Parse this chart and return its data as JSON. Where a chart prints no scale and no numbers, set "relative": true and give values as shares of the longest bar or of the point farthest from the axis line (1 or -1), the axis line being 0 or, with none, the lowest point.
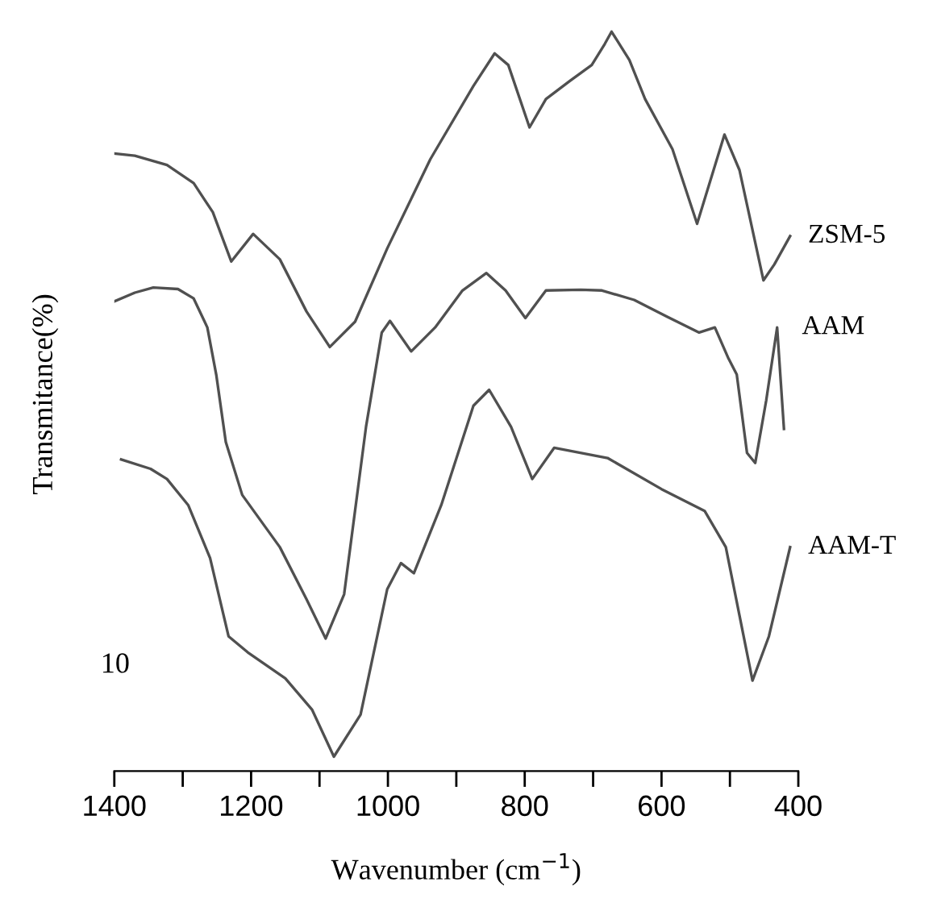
{
  "chart_data": {
    "type": "line",
    "relative": true,
    "xlabel": "Wavenumber (cm$^{−1}$)",
    "ylabel": "Transmitance(%)",
    "xlim": [
      1400,
      400
    ],
    "xticks": [
      {
        "value": 1400,
        "label": "1400"
      },
      {
        "value": 1300,
        "label": null
      },
      {
        "value": 1200,
        "label": "1200"
      },
      {
        "value": 1100,
        "label": null
      },
      {
        "value": 1000,
        "label": "1000"
      },
      {
        "value": 900,
        "label": null
      },
      {
        "value": 800,
        "label": "800"
      },
      {
        "value": 700,
        "label": null
      },
      {
        "value": 600,
        "label": "600"
      },
      {
        "value": 500,
        "label": null
      },
      {
        "value": 400,
        "label": "400"
      }
    ],
    "tick_labels": "x",
    "grid": false,
    "legend": false,
    "marker": "none",
    "line_style": "solid",
    "annotations": [
      "10"
    ],
    "series": [
      {
        "name": "ZSM-5",
        "color": "#505050",
        "x": [
          1400,
          1370,
          1323,
          1284,
          1256,
          1229,
          1197,
          1158,
          1119,
          1085,
          1048,
          1001,
          938,
          875,
          844,
          824,
          793,
          769,
          734,
          702,
          683,
          673,
          647,
          624,
          584,
          548,
          508,
          486,
          451,
          435,
          412
        ],
        "values": [
          0.832,
          0.829,
          0.816,
          0.791,
          0.751,
          0.683,
          0.721,
          0.686,
          0.614,
          0.565,
          0.6,
          0.701,
          0.824,
          0.925,
          0.97,
          0.954,
          0.868,
          0.907,
          0.932,
          0.954,
          0.983,
          1.0,
          0.961,
          0.907,
          0.838,
          0.735,
          0.858,
          0.809,
          0.657,
          0.679,
          0.718
        ]
      },
      {
        "name": "AAM",
        "color": "#505050",
        "x": [
          1400,
          1370,
          1343,
          1307,
          1284,
          1264,
          1251,
          1237,
          1213,
          1158,
          1119,
          1091,
          1064,
          1032,
          1009,
          997,
          966,
          931,
          891,
          856,
          828,
          799,
          769,
          718,
          687,
          640,
          592,
          545,
          522,
          502,
          490,
          475,
          463,
          447,
          431,
          421
        ],
        "values": [
          0.628,
          0.64,
          0.647,
          0.645,
          0.632,
          0.592,
          0.527,
          0.434,
          0.361,
          0.289,
          0.217,
          0.163,
          0.224,
          0.455,
          0.585,
          0.601,
          0.559,
          0.592,
          0.643,
          0.667,
          0.643,
          0.605,
          0.643,
          0.644,
          0.643,
          0.63,
          0.607,
          0.585,
          0.592,
          0.549,
          0.527,
          0.419,
          0.405,
          0.491,
          0.592,
          0.452
        ]
      },
      {
        "name": "AAM-T",
        "color": "#505050",
        "x": [
          1390,
          1347,
          1323,
          1292,
          1260,
          1233,
          1205,
          1150,
          1111,
          1079,
          1040,
          1001,
          981,
          962,
          922,
          875,
          852,
          820,
          789,
          757,
          679,
          600,
          537,
          506,
          467,
          443,
          412
        ],
        "values": [
          0.41,
          0.397,
          0.383,
          0.347,
          0.274,
          0.166,
          0.144,
          0.108,
          0.065,
          0.0,
          0.058,
          0.231,
          0.267,
          0.253,
          0.347,
          0.484,
          0.506,
          0.455,
          0.383,
          0.426,
          0.412,
          0.369,
          0.339,
          0.289,
          0.105,
          0.166,
          0.289
        ]
      }
    ]
  }
}
